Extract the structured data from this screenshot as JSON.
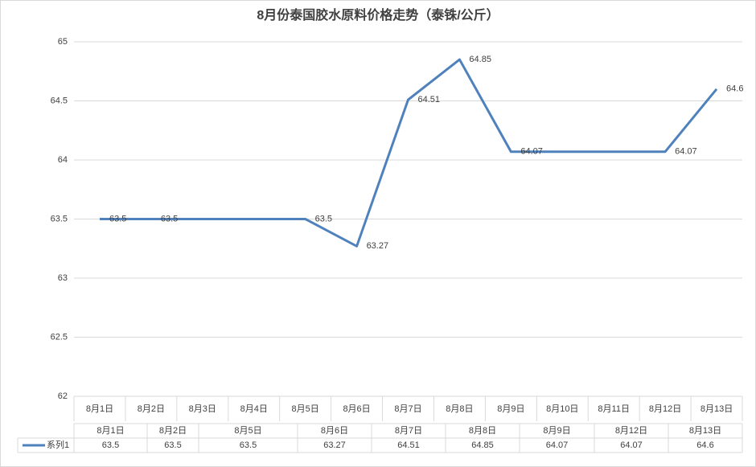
{
  "chart_data": {
    "type": "line",
    "title": "8月份泰国胶水原料价格走势（泰铢/公斤）",
    "categories": [
      "8月1日",
      "8月2日",
      "8月3日",
      "8月4日",
      "8月5日",
      "8月6日",
      "8月7日",
      "8月8日",
      "8月9日",
      "8月10日",
      "8月11日",
      "8月12日",
      "8月13日"
    ],
    "series": [
      {
        "name": "系列1",
        "color": "#4f81bd",
        "x": [
          "8月1日",
          "8月2日",
          "8月5日",
          "8月6日",
          "8月7日",
          "8月8日",
          "8月9日",
          "8月12日",
          "8月13日"
        ],
        "values": [
          63.5,
          63.5,
          63.5,
          63.27,
          64.51,
          64.85,
          64.07,
          64.07,
          64.6
        ]
      }
    ],
    "ylim": [
      62,
      65
    ],
    "yticks": [
      62,
      62.5,
      63,
      63.5,
      64,
      64.5,
      65
    ],
    "grid": true
  }
}
